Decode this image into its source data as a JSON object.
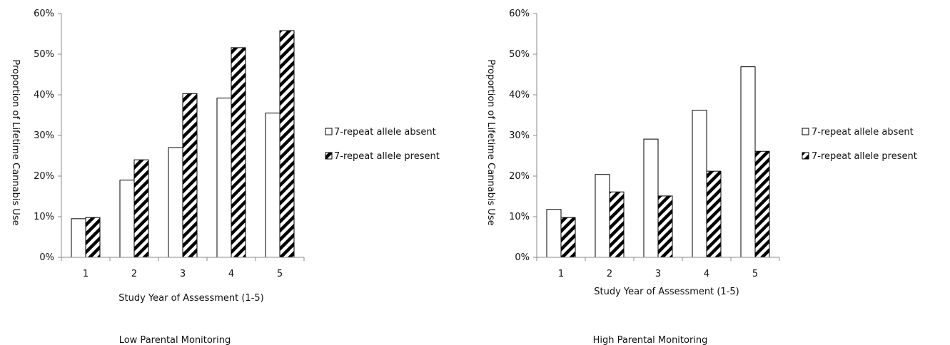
{
  "colors": {
    "bar_fill": "#ffffff",
    "bar_stroke": "#000000",
    "hatch": "#000000",
    "axis": "#888888"
  },
  "chart_data": [
    {
      "type": "bar",
      "title": "Low Parental Monitoring",
      "xlabel": "Study Year of Assessment (1-5)",
      "ylabel": "Proportion of Lifetime Cannabis Use",
      "categories": [
        "1",
        "2",
        "3",
        "4",
        "5"
      ],
      "ylim": [
        0,
        60
      ],
      "yticks": [
        "0%",
        "10%",
        "20%",
        "30%",
        "40%",
        "50%",
        "60%"
      ],
      "grid": false,
      "legend_position": "right",
      "series": [
        {
          "name": "7-repeat allele absent",
          "pattern": "solid",
          "values": [
            9.5,
            19,
            27,
            39.2,
            35.5
          ]
        },
        {
          "name": "7-repeat allele present",
          "pattern": "hatched",
          "values": [
            9.8,
            24,
            40.3,
            51.6,
            55.8
          ]
        }
      ]
    },
    {
      "type": "bar",
      "title": "High Parental Monitoring",
      "xlabel": "Study Year of Assessment (1-5)",
      "ylabel": "Proportion of Lifetime Cannabis Use",
      "categories": [
        "1",
        "2",
        "3",
        "4",
        "5"
      ],
      "ylim": [
        0,
        60
      ],
      "yticks": [
        "0%",
        "10%",
        "20%",
        "30%",
        "40%",
        "50%",
        "60%"
      ],
      "grid": false,
      "legend_position": "right",
      "series": [
        {
          "name": "7-repeat allele absent",
          "pattern": "solid",
          "values": [
            11.8,
            20.4,
            29.1,
            36.2,
            46.9
          ]
        },
        {
          "name": "7-repeat allele present",
          "pattern": "hatched",
          "values": [
            9.8,
            16.1,
            15.1,
            21.2,
            26.1
          ]
        }
      ]
    }
  ]
}
